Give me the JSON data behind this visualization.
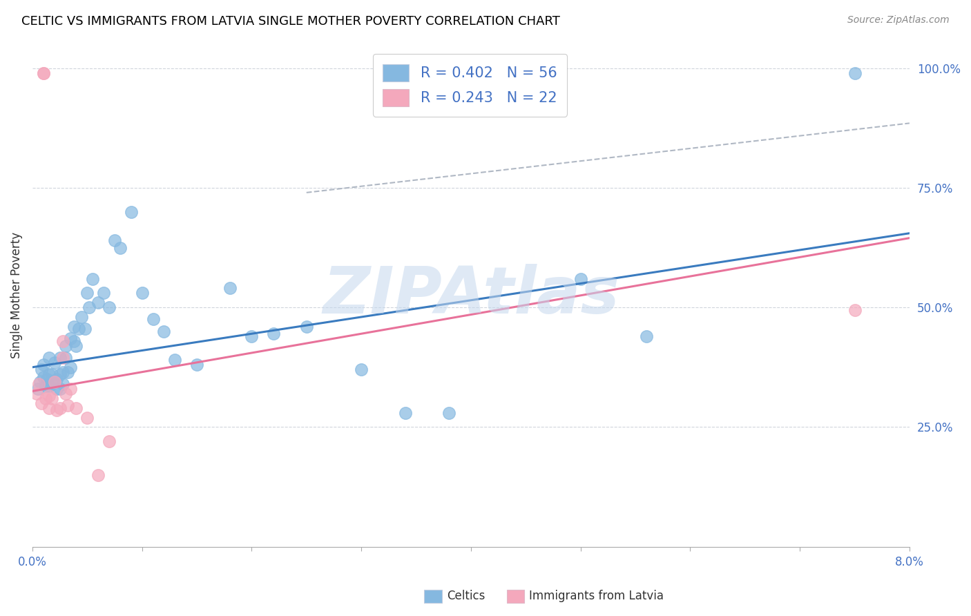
{
  "title": "CELTIC VS IMMIGRANTS FROM LATVIA SINGLE MOTHER POVERTY CORRELATION CHART",
  "source": "Source: ZipAtlas.com",
  "ylabel": "Single Mother Poverty",
  "legend_celtics_r": "R = 0.402",
  "legend_celtics_n": "N = 56",
  "legend_latvia_r": "R = 0.243",
  "legend_latvia_n": "N = 22",
  "celtics_color": "#85b8e0",
  "latvia_color": "#f4a8bc",
  "celtics_line_color": "#3a7bbf",
  "latvia_line_color": "#e8729a",
  "dashed_line_color": "#b0b8c4",
  "watermark_text": "ZIPAtlas",
  "watermark_color": "#c5d8ee",
  "celtics_scatter_x": [
    0.0005,
    0.0007,
    0.0008,
    0.001,
    0.001,
    0.0012,
    0.0013,
    0.0015,
    0.0015,
    0.0015,
    0.0018,
    0.0018,
    0.002,
    0.002,
    0.0022,
    0.0022,
    0.0025,
    0.0025,
    0.0025,
    0.0028,
    0.0028,
    0.003,
    0.003,
    0.0032,
    0.0035,
    0.0035,
    0.0038,
    0.0038,
    0.004,
    0.0042,
    0.0045,
    0.0048,
    0.005,
    0.0052,
    0.0055,
    0.006,
    0.0065,
    0.007,
    0.0075,
    0.008,
    0.009,
    0.01,
    0.011,
    0.012,
    0.013,
    0.015,
    0.018,
    0.02,
    0.022,
    0.025,
    0.03,
    0.034,
    0.038,
    0.05,
    0.056,
    0.075
  ],
  "celtics_scatter_y": [
    0.33,
    0.345,
    0.37,
    0.355,
    0.38,
    0.335,
    0.35,
    0.335,
    0.36,
    0.395,
    0.34,
    0.36,
    0.345,
    0.385,
    0.33,
    0.35,
    0.33,
    0.36,
    0.395,
    0.34,
    0.365,
    0.395,
    0.42,
    0.365,
    0.375,
    0.435,
    0.43,
    0.46,
    0.42,
    0.455,
    0.48,
    0.455,
    0.53,
    0.5,
    0.56,
    0.51,
    0.53,
    0.5,
    0.64,
    0.625,
    0.7,
    0.53,
    0.475,
    0.45,
    0.39,
    0.38,
    0.54,
    0.44,
    0.445,
    0.46,
    0.37,
    0.28,
    0.28,
    0.56,
    0.44,
    0.99
  ],
  "latvia_scatter_x": [
    0.0004,
    0.0006,
    0.0008,
    0.001,
    0.001,
    0.0012,
    0.0015,
    0.0015,
    0.0018,
    0.002,
    0.0022,
    0.0025,
    0.0028,
    0.0028,
    0.003,
    0.0032,
    0.0035,
    0.004,
    0.005,
    0.006,
    0.007,
    0.075
  ],
  "latvia_scatter_y": [
    0.32,
    0.34,
    0.3,
    0.99,
    0.99,
    0.31,
    0.29,
    0.315,
    0.31,
    0.345,
    0.285,
    0.29,
    0.395,
    0.43,
    0.32,
    0.295,
    0.33,
    0.29,
    0.27,
    0.15,
    0.22,
    0.495
  ],
  "xlim": [
    0.0,
    0.08
  ],
  "ylim": [
    0.0,
    1.05
  ],
  "ytick_positions": [
    0.25,
    0.5,
    0.75,
    1.0
  ],
  "ytick_labels": [
    "25.0%",
    "50.0%",
    "75.0%",
    "100.0%"
  ],
  "blue_line_x0": 0.0,
  "blue_line_y0": 0.375,
  "blue_line_x1": 0.08,
  "blue_line_y1": 0.655,
  "pink_line_x0": 0.0,
  "pink_line_y0": 0.325,
  "pink_line_x1": 0.08,
  "pink_line_y1": 0.645,
  "dash_line_x0": 0.025,
  "dash_line_y0": 0.74,
  "dash_line_x1": 0.08,
  "dash_line_y1": 0.885
}
